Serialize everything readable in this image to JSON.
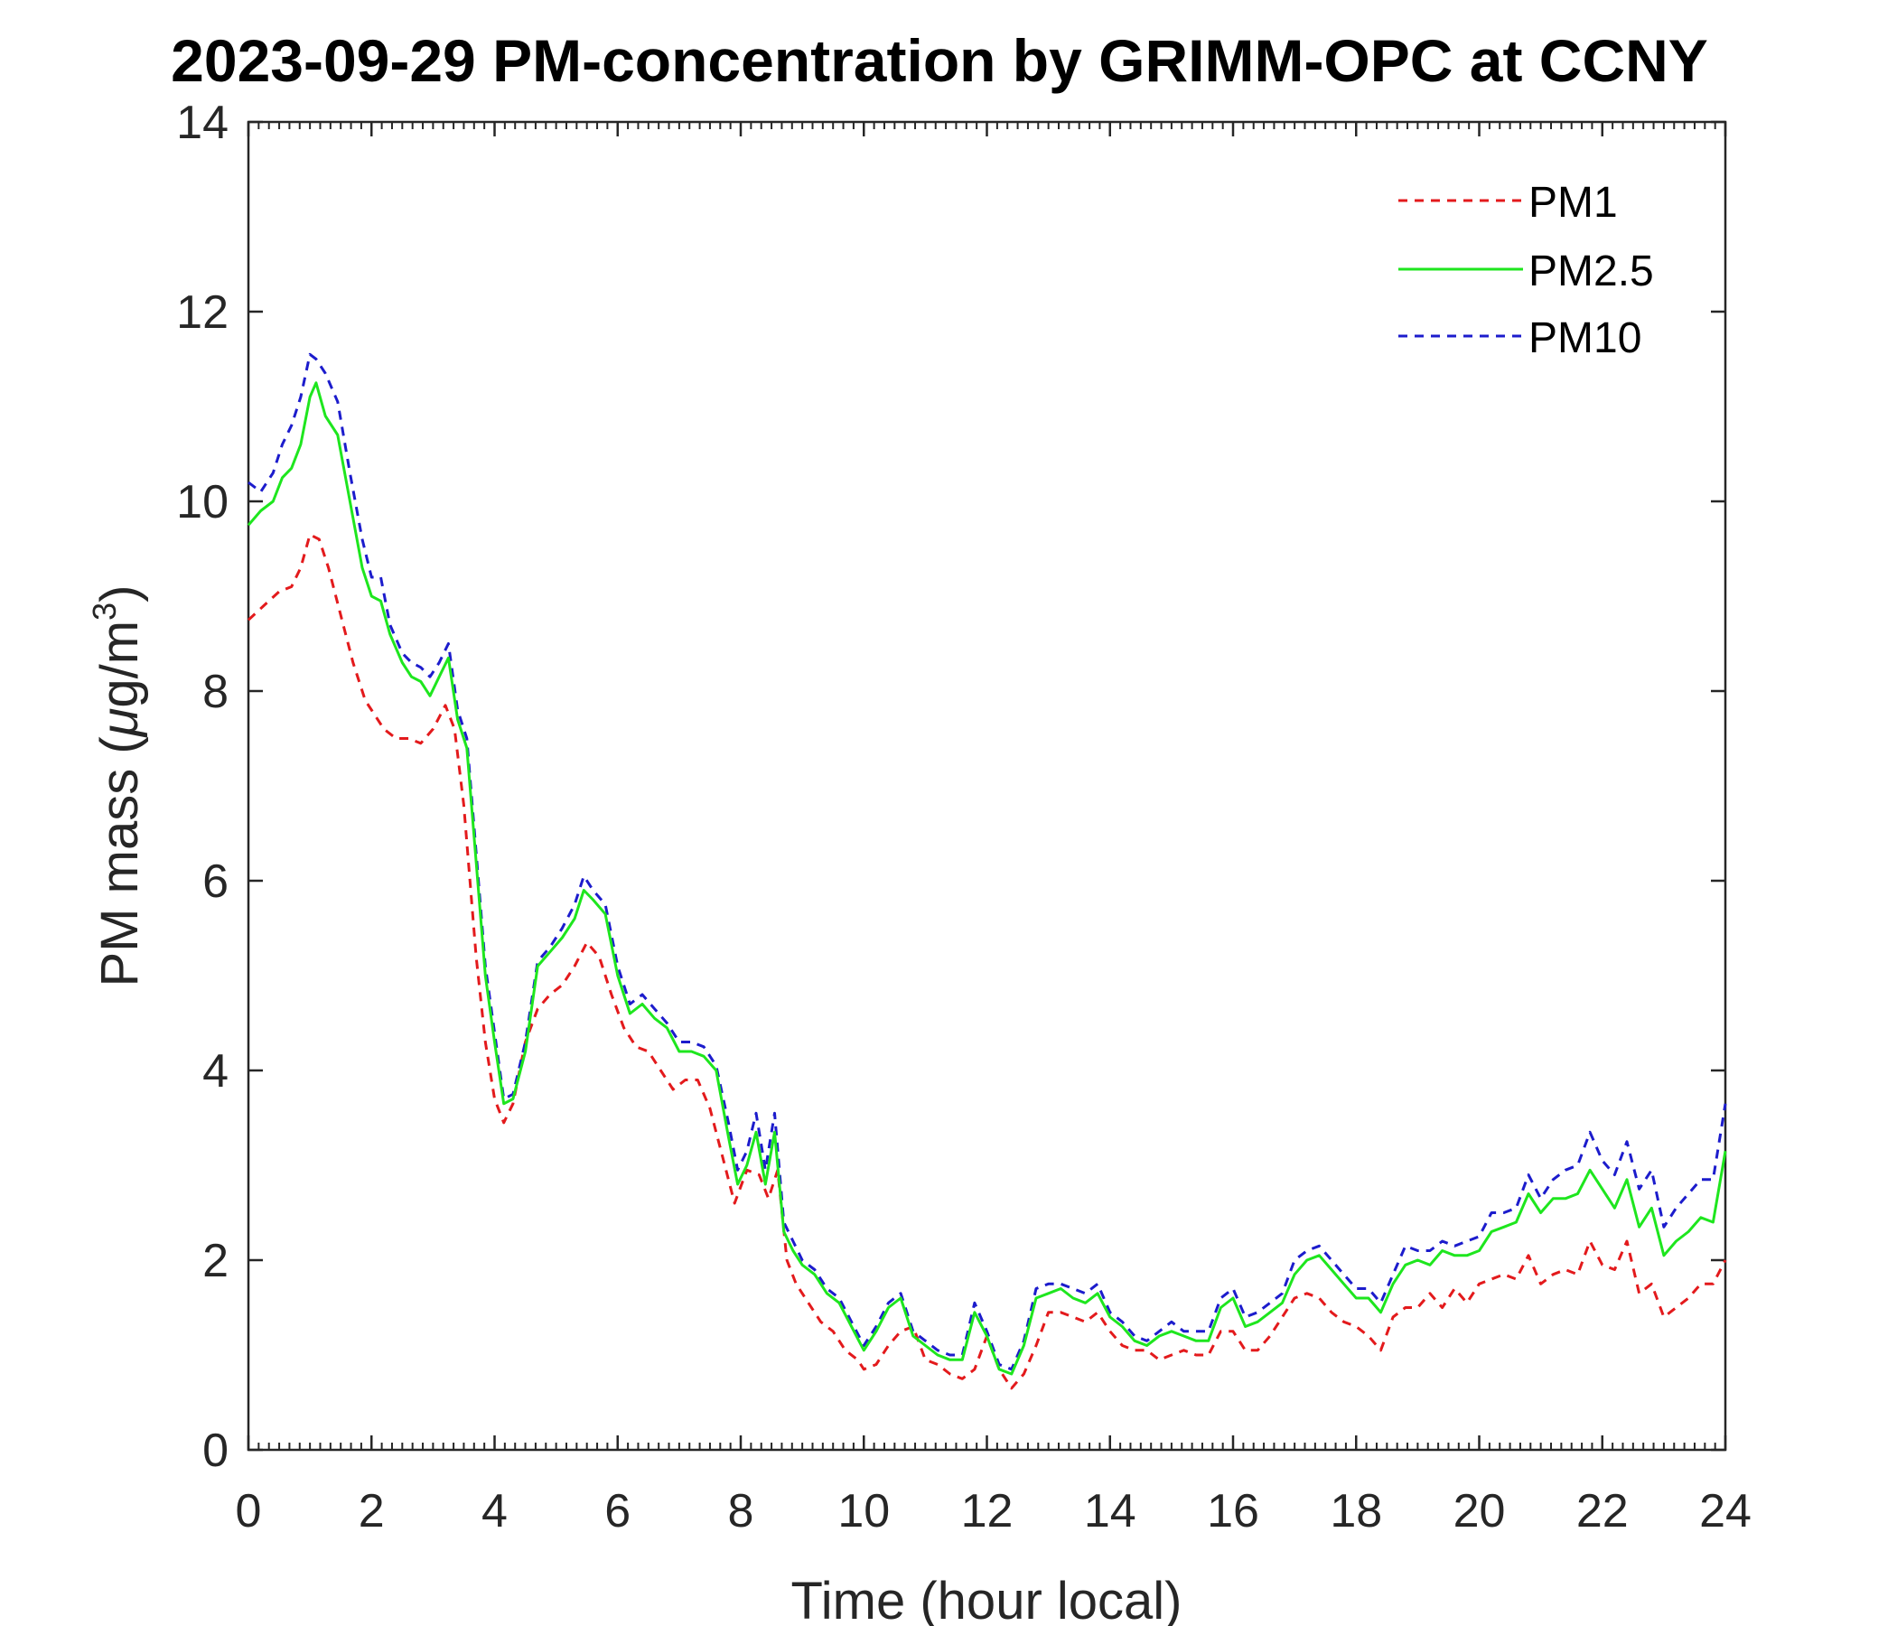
{
  "chart_data": {
    "type": "line",
    "title": "2023-09-29 PM-concentration by GRIMM-OPC at CCNY",
    "xlabel": "Time (hour local)",
    "ylabel": {
      "prefix": "PM mass (",
      "mu": "μ",
      "unit": "g/m",
      "sup": "3",
      "suffix": ")"
    },
    "xlim": [
      0,
      24
    ],
    "ylim": [
      0,
      14
    ],
    "x_ticks": [
      0,
      2,
      4,
      6,
      8,
      10,
      12,
      14,
      16,
      18,
      20,
      22,
      24
    ],
    "y_ticks": [
      0,
      2,
      4,
      6,
      8,
      10,
      12,
      14
    ],
    "x_tick_labels": [
      "0",
      "2",
      "4",
      "6",
      "8",
      "10",
      "12",
      "14",
      "16",
      "18",
      "20",
      "22",
      "24"
    ],
    "y_tick_labels": [
      "0",
      "2",
      "4",
      "6",
      "8",
      "10",
      "12",
      "14"
    ],
    "x_minor_step": 0.16667,
    "legend_position": "top-right",
    "grid": false,
    "series": [
      {
        "name": "PM1",
        "color": "#e31a1c",
        "style": "dashed",
        "x": [
          0,
          0.25,
          0.5,
          0.7,
          0.85,
          1.0,
          1.15,
          1.3,
          1.5,
          1.7,
          1.9,
          2.0,
          2.2,
          2.4,
          2.6,
          2.8,
          3.0,
          3.2,
          3.35,
          3.5,
          3.7,
          3.85,
          4.0,
          4.15,
          4.3,
          4.5,
          4.7,
          4.9,
          5.1,
          5.3,
          5.5,
          5.7,
          5.9,
          6.1,
          6.3,
          6.5,
          6.7,
          6.9,
          7.1,
          7.3,
          7.5,
          7.7,
          7.9,
          8.1,
          8.3,
          8.45,
          8.6,
          8.75,
          8.9,
          9.1,
          9.3,
          9.5,
          9.7,
          9.9,
          10.0,
          10.2,
          10.4,
          10.6,
          10.8,
          11.0,
          11.2,
          11.4,
          11.6,
          11.8,
          12.0,
          12.2,
          12.4,
          12.6,
          12.8,
          13.0,
          13.2,
          13.4,
          13.6,
          13.8,
          14.0,
          14.2,
          14.4,
          14.6,
          14.8,
          15.0,
          15.2,
          15.4,
          15.6,
          15.8,
          16.0,
          16.2,
          16.4,
          16.6,
          16.8,
          17.0,
          17.2,
          17.4,
          17.6,
          17.8,
          18.0,
          18.2,
          18.4,
          18.6,
          18.8,
          19.0,
          19.2,
          19.4,
          19.6,
          19.8,
          20.0,
          20.2,
          20.4,
          20.6,
          20.8,
          21.0,
          21.2,
          21.4,
          21.6,
          21.8,
          22.0,
          22.2,
          22.4,
          22.6,
          22.8,
          23.0,
          23.2,
          23.4,
          23.6,
          23.8,
          24.0
        ],
        "values": [
          8.75,
          8.9,
          9.05,
          9.1,
          9.3,
          9.65,
          9.6,
          9.3,
          8.8,
          8.3,
          7.9,
          7.8,
          7.6,
          7.5,
          7.5,
          7.45,
          7.6,
          7.85,
          7.6,
          6.8,
          5.2,
          4.3,
          3.7,
          3.45,
          3.65,
          4.3,
          4.65,
          4.8,
          4.9,
          5.1,
          5.35,
          5.2,
          4.8,
          4.45,
          4.25,
          4.2,
          4.0,
          3.8,
          3.9,
          3.9,
          3.6,
          3.1,
          2.6,
          2.95,
          2.9,
          2.65,
          2.95,
          2.0,
          1.75,
          1.55,
          1.35,
          1.25,
          1.05,
          0.95,
          0.85,
          0.9,
          1.1,
          1.25,
          1.3,
          0.95,
          0.9,
          0.8,
          0.75,
          0.85,
          1.2,
          0.85,
          0.65,
          0.8,
          1.1,
          1.45,
          1.45,
          1.4,
          1.35,
          1.45,
          1.25,
          1.1,
          1.05,
          1.05,
          0.95,
          1.0,
          1.05,
          1.0,
          1.0,
          1.25,
          1.25,
          1.05,
          1.05,
          1.2,
          1.4,
          1.6,
          1.65,
          1.6,
          1.45,
          1.35,
          1.3,
          1.2,
          1.05,
          1.4,
          1.5,
          1.5,
          1.65,
          1.5,
          1.7,
          1.55,
          1.75,
          1.8,
          1.85,
          1.8,
          2.05,
          1.75,
          1.85,
          1.9,
          1.85,
          2.2,
          1.95,
          1.9,
          2.2,
          1.65,
          1.75,
          1.4,
          1.5,
          1.6,
          1.75,
          1.75,
          2.0
        ]
      },
      {
        "name": "PM2.5",
        "color": "#1ee61e",
        "style": "solid",
        "x": [
          0,
          0.2,
          0.4,
          0.55,
          0.7,
          0.85,
          1.0,
          1.1,
          1.25,
          1.45,
          1.65,
          1.85,
          2.0,
          2.15,
          2.3,
          2.5,
          2.65,
          2.8,
          2.95,
          3.1,
          3.25,
          3.4,
          3.55,
          3.7,
          3.85,
          4.0,
          4.15,
          4.3,
          4.5,
          4.7,
          4.9,
          5.1,
          5.3,
          5.45,
          5.6,
          5.8,
          6.0,
          6.2,
          6.4,
          6.6,
          6.8,
          7.0,
          7.2,
          7.4,
          7.6,
          7.8,
          7.95,
          8.1,
          8.25,
          8.4,
          8.55,
          8.7,
          8.85,
          9.0,
          9.2,
          9.4,
          9.6,
          9.8,
          10.0,
          10.2,
          10.4,
          10.6,
          10.8,
          11.0,
          11.2,
          11.4,
          11.6,
          11.8,
          12.0,
          12.2,
          12.4,
          12.6,
          12.8,
          13.0,
          13.2,
          13.4,
          13.6,
          13.8,
          14.0,
          14.2,
          14.4,
          14.6,
          14.8,
          15.0,
          15.2,
          15.4,
          15.6,
          15.8,
          16.0,
          16.2,
          16.4,
          16.6,
          16.8,
          17.0,
          17.2,
          17.4,
          17.6,
          17.8,
          18.0,
          18.2,
          18.4,
          18.6,
          18.8,
          19.0,
          19.2,
          19.4,
          19.6,
          19.8,
          20.0,
          20.2,
          20.4,
          20.6,
          20.8,
          21.0,
          21.2,
          21.4,
          21.6,
          21.8,
          22.0,
          22.2,
          22.4,
          22.6,
          22.8,
          23.0,
          23.2,
          23.4,
          23.6,
          23.8,
          24.0
        ],
        "values": [
          9.75,
          9.9,
          10.0,
          10.25,
          10.35,
          10.6,
          11.1,
          11.25,
          10.9,
          10.7,
          10.0,
          9.3,
          9.0,
          8.95,
          8.6,
          8.3,
          8.15,
          8.1,
          7.95,
          8.15,
          8.35,
          7.7,
          7.4,
          6.2,
          5.0,
          4.3,
          3.65,
          3.7,
          4.2,
          5.1,
          5.25,
          5.4,
          5.6,
          5.9,
          5.8,
          5.65,
          5.0,
          4.6,
          4.7,
          4.55,
          4.45,
          4.2,
          4.2,
          4.15,
          4.0,
          3.3,
          2.8,
          3.0,
          3.35,
          2.8,
          3.35,
          2.3,
          2.1,
          1.95,
          1.85,
          1.65,
          1.55,
          1.3,
          1.05,
          1.25,
          1.5,
          1.6,
          1.2,
          1.1,
          1.0,
          0.95,
          0.95,
          1.45,
          1.2,
          0.85,
          0.8,
          1.1,
          1.6,
          1.65,
          1.7,
          1.6,
          1.55,
          1.65,
          1.4,
          1.3,
          1.15,
          1.1,
          1.2,
          1.25,
          1.2,
          1.15,
          1.15,
          1.5,
          1.6,
          1.3,
          1.35,
          1.45,
          1.55,
          1.85,
          2.0,
          2.05,
          1.9,
          1.75,
          1.6,
          1.6,
          1.45,
          1.75,
          1.95,
          2.0,
          1.95,
          2.1,
          2.05,
          2.05,
          2.1,
          2.3,
          2.35,
          2.4,
          2.7,
          2.5,
          2.65,
          2.65,
          2.7,
          2.95,
          2.75,
          2.55,
          2.85,
          2.35,
          2.55,
          2.05,
          2.2,
          2.3,
          2.45,
          2.4,
          3.15
        ]
      },
      {
        "name": "PM10",
        "color": "#1c1ccc",
        "style": "dashed",
        "x": [
          0,
          0.2,
          0.4,
          0.55,
          0.7,
          0.85,
          1.0,
          1.1,
          1.25,
          1.45,
          1.65,
          1.85,
          2.0,
          2.15,
          2.3,
          2.5,
          2.65,
          2.8,
          2.95,
          3.1,
          3.25,
          3.4,
          3.55,
          3.7,
          3.85,
          4.0,
          4.15,
          4.3,
          4.5,
          4.7,
          4.9,
          5.1,
          5.3,
          5.45,
          5.6,
          5.8,
          6.0,
          6.2,
          6.4,
          6.6,
          6.8,
          7.0,
          7.2,
          7.4,
          7.6,
          7.8,
          7.95,
          8.1,
          8.25,
          8.4,
          8.55,
          8.7,
          8.85,
          9.0,
          9.2,
          9.4,
          9.6,
          9.8,
          10.0,
          10.2,
          10.4,
          10.6,
          10.8,
          11.0,
          11.2,
          11.4,
          11.6,
          11.8,
          12.0,
          12.2,
          12.4,
          12.6,
          12.8,
          13.0,
          13.2,
          13.4,
          13.6,
          13.8,
          14.0,
          14.2,
          14.4,
          14.6,
          14.8,
          15.0,
          15.2,
          15.4,
          15.6,
          15.8,
          16.0,
          16.2,
          16.4,
          16.6,
          16.8,
          17.0,
          17.2,
          17.4,
          17.6,
          17.8,
          18.0,
          18.2,
          18.4,
          18.6,
          18.8,
          19.0,
          19.2,
          19.4,
          19.6,
          19.8,
          20.0,
          20.2,
          20.4,
          20.6,
          20.8,
          21.0,
          21.2,
          21.4,
          21.6,
          21.8,
          22.0,
          22.2,
          22.4,
          22.6,
          22.8,
          23.0,
          23.2,
          23.4,
          23.6,
          23.8,
          24.0
        ],
        "values": [
          10.2,
          10.1,
          10.3,
          10.6,
          10.8,
          11.1,
          11.55,
          11.5,
          11.35,
          11.05,
          10.3,
          9.6,
          9.2,
          9.2,
          8.7,
          8.4,
          8.3,
          8.25,
          8.15,
          8.3,
          8.5,
          7.8,
          7.5,
          6.3,
          5.1,
          4.4,
          3.7,
          3.75,
          4.3,
          5.15,
          5.3,
          5.5,
          5.75,
          6.05,
          5.9,
          5.75,
          5.1,
          4.7,
          4.8,
          4.65,
          4.5,
          4.3,
          4.3,
          4.25,
          4.05,
          3.45,
          2.95,
          3.15,
          3.55,
          2.95,
          3.55,
          2.4,
          2.2,
          2.0,
          1.9,
          1.7,
          1.6,
          1.35,
          1.1,
          1.3,
          1.55,
          1.65,
          1.25,
          1.15,
          1.05,
          1.0,
          1.0,
          1.55,
          1.25,
          0.9,
          0.85,
          1.15,
          1.7,
          1.75,
          1.75,
          1.7,
          1.65,
          1.75,
          1.45,
          1.35,
          1.2,
          1.15,
          1.25,
          1.35,
          1.25,
          1.25,
          1.25,
          1.6,
          1.7,
          1.4,
          1.45,
          1.55,
          1.65,
          2.0,
          2.1,
          2.15,
          2.0,
          1.85,
          1.7,
          1.7,
          1.55,
          1.85,
          2.15,
          2.1,
          2.1,
          2.2,
          2.15,
          2.2,
          2.25,
          2.5,
          2.5,
          2.55,
          2.9,
          2.65,
          2.85,
          2.95,
          3.0,
          3.35,
          3.05,
          2.9,
          3.25,
          2.75,
          2.95,
          2.35,
          2.55,
          2.7,
          2.85,
          2.85,
          3.65
        ]
      }
    ]
  }
}
